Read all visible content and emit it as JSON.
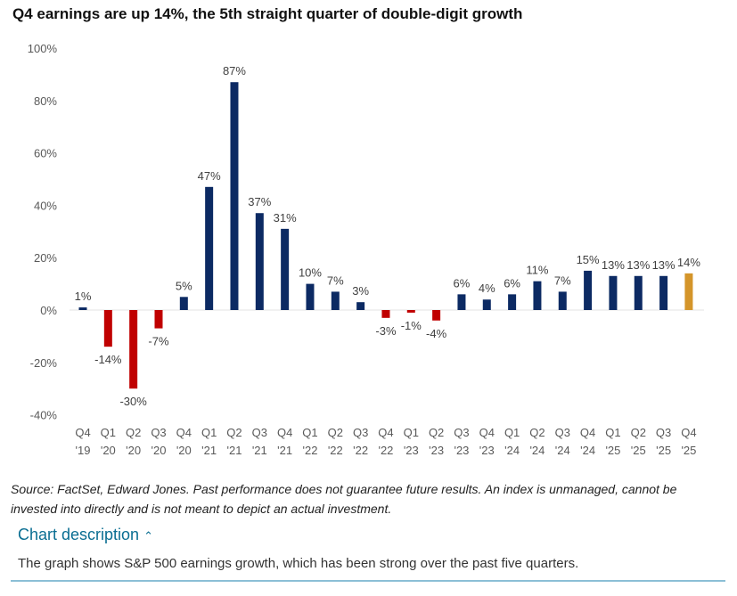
{
  "title": "Q4 earnings are up 14%, the 5th straight quarter of double-digit growth",
  "chart_data": {
    "type": "bar",
    "title": "Q4 earnings are up 14%, the 5th straight quarter of double-digit growth",
    "xlabel": "",
    "ylabel": "",
    "ylim": [
      -40,
      100
    ],
    "yticks": [
      "100%",
      "80%",
      "60%",
      "40%",
      "20%",
      "0%",
      "-20%",
      "-40%"
    ],
    "yticks_values": [
      100,
      80,
      60,
      40,
      20,
      0,
      -20,
      -40
    ],
    "categories": [
      [
        "Q4",
        "'19"
      ],
      [
        "Q1",
        "'20"
      ],
      [
        "Q2",
        "'20"
      ],
      [
        "Q3",
        "'20"
      ],
      [
        "Q4",
        "'20"
      ],
      [
        "Q1",
        "'21"
      ],
      [
        "Q2",
        "'21"
      ],
      [
        "Q3",
        "'21"
      ],
      [
        "Q4",
        "'21"
      ],
      [
        "Q1",
        "'22"
      ],
      [
        "Q2",
        "'22"
      ],
      [
        "Q3",
        "'22"
      ],
      [
        "Q4",
        "'22"
      ],
      [
        "Q1",
        "'23"
      ],
      [
        "Q2",
        "'23"
      ],
      [
        "Q3",
        "'23"
      ],
      [
        "Q4",
        "'23"
      ],
      [
        "Q1",
        "'24"
      ],
      [
        "Q2",
        "'24"
      ],
      [
        "Q3",
        "'24"
      ],
      [
        "Q4",
        "'24"
      ],
      [
        "Q1",
        "'25"
      ],
      [
        "Q2",
        "'25"
      ],
      [
        "Q3",
        "'25"
      ],
      [
        "Q4",
        "'25"
      ]
    ],
    "values": [
      1,
      -14,
      -30,
      -7,
      5,
      47,
      87,
      37,
      31,
      10,
      7,
      3,
      -3,
      -1,
      -4,
      6,
      4,
      6,
      11,
      7,
      15,
      13,
      13,
      13,
      14
    ],
    "data_labels": [
      "1%",
      "-14%",
      "-30%",
      "-7%",
      "5%",
      "47%",
      "87%",
      "37%",
      "31%",
      "10%",
      "7%",
      "3%",
      "-3%",
      "-1%",
      "-4%",
      "6%",
      "4%",
      "6%",
      "11%",
      "7%",
      "15%",
      "13%",
      "13%",
      "13%",
      "14%"
    ],
    "colors": {
      "positive": "#0c2a63",
      "negative": "#c00000",
      "latest": "#d4952a"
    },
    "grid": false
  },
  "source": "Source: FactSet, Edward Jones. Past performance does not guarantee future results. An index is unmanaged, cannot be invested into directly and is not meant to depict an actual investment.",
  "description_toggle": "Chart description",
  "description": "The graph shows S&P 500 earnings growth, which has been strong over the past five quarters."
}
